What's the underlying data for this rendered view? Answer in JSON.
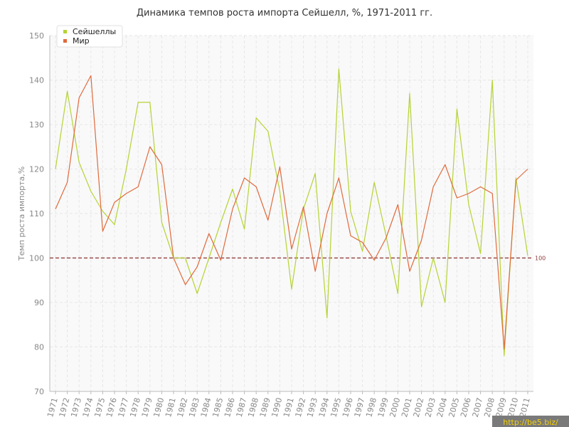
{
  "chart_data": {
    "type": "line",
    "title": "Динамика темпов роста импорта Сейшелл, %, 1971-2011 гг.",
    "xlabel": "",
    "ylabel": "Темп роста импорта,%",
    "ylim": [
      70,
      150
    ],
    "yticks": [
      70,
      80,
      90,
      100,
      110,
      120,
      130,
      140,
      150
    ],
    "grid": true,
    "legend_position": "top-left",
    "reference_line": {
      "value": 100,
      "label": "100",
      "color": "#9b4a4a"
    },
    "x": [
      "1971",
      "1972",
      "1973",
      "1974",
      "1975",
      "1976",
      "1977",
      "1978",
      "1979",
      "1980",
      "1981",
      "1982",
      "1983",
      "1984",
      "1985",
      "1986",
      "1987",
      "1988",
      "1989",
      "1990",
      "1991",
      "1992",
      "1993",
      "1994",
      "1995",
      "1996",
      "1997",
      "1998",
      "1999",
      "2000",
      "2001",
      "2002",
      "2003",
      "2004",
      "2005",
      "2006",
      "2007",
      "2008",
      "2009",
      "2010",
      "2011"
    ],
    "series": [
      {
        "name": "Сейшеллы",
        "color": "#b5d334",
        "values": [
          120,
          137.5,
          121.5,
          115,
          110.5,
          107.5,
          120,
          135,
          135,
          108,
          100,
          100,
          92,
          100,
          108,
          115.5,
          106.5,
          131.5,
          128.5,
          115,
          93,
          111,
          119,
          86.5,
          142.5,
          110.5,
          101.5,
          117,
          105,
          92,
          137,
          89,
          100,
          90,
          133.5,
          112,
          101,
          140,
          78,
          118,
          100.5
        ]
      },
      {
        "name": "Мир",
        "color": "#e06a3c",
        "values": [
          111,
          117,
          136,
          141,
          106,
          112.5,
          114.5,
          116,
          125,
          121,
          100,
          94,
          98,
          105.5,
          99.5,
          111,
          118,
          116,
          108.5,
          120.5,
          102,
          111.5,
          97,
          110,
          118,
          105,
          103.5,
          99.5,
          104.5,
          112,
          97,
          104,
          116,
          121,
          113.5,
          114.5,
          116,
          114.5,
          79.5,
          117.5,
          120
        ]
      }
    ]
  },
  "watermark": "http://be5.biz/"
}
